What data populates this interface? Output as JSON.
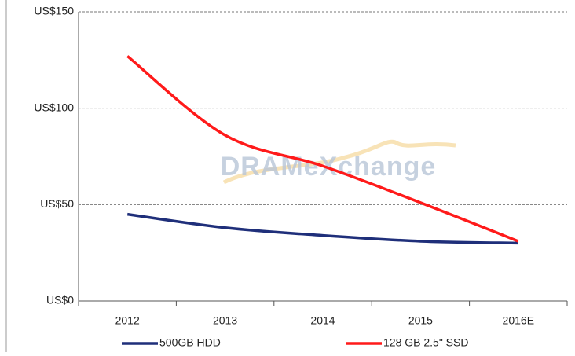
{
  "chart_data": {
    "type": "line",
    "categories": [
      "2012",
      "2013",
      "2014",
      "2015",
      "2016E"
    ],
    "series": [
      {
        "name": "500GB HDD",
        "color": "#1f2f7a",
        "values": [
          45,
          38,
          34,
          31,
          30
        ]
      },
      {
        "name": "128 GB 2.5\" SSD",
        "color": "#ff1a1a",
        "values": [
          127,
          86,
          70,
          51,
          31
        ]
      }
    ],
    "ylim": [
      0,
      150
    ],
    "yticks": [
      {
        "value": 0,
        "label": "US$0"
      },
      {
        "value": 50,
        "label": "US$50"
      },
      {
        "value": 100,
        "label": "US$100"
      },
      {
        "value": 150,
        "label": "US$150"
      }
    ],
    "grid": true,
    "legend": "bottom",
    "watermark": "DRAMeXchange"
  }
}
